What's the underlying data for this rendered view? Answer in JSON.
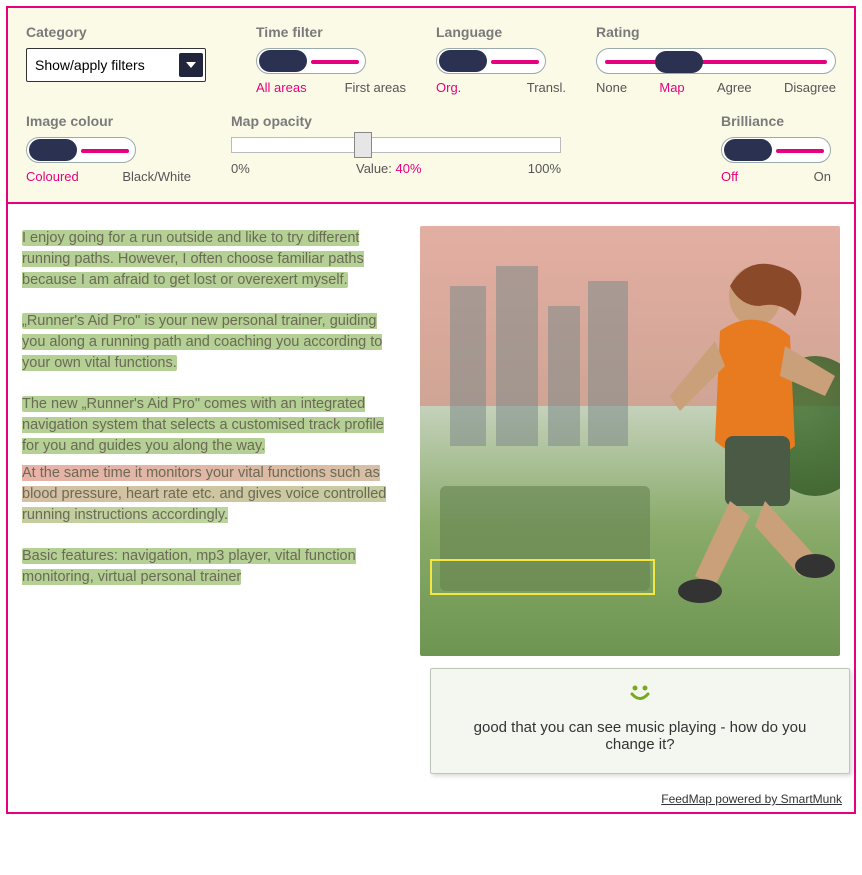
{
  "filters": {
    "category": {
      "label": "Category",
      "dropdown_value": "Show/apply filters"
    },
    "time": {
      "label": "Time filter",
      "left": "All areas",
      "right": "First areas",
      "active": "left"
    },
    "language": {
      "label": "Language",
      "left": "Org.",
      "right": "Transl.",
      "active": "left"
    },
    "rating": {
      "label": "Rating",
      "options": [
        "None",
        "Map",
        "Agree",
        "Disagree"
      ],
      "active_index": 1
    },
    "colour": {
      "label": "Image colour",
      "left": "Coloured",
      "right": "Black/White",
      "active": "left"
    },
    "opacity": {
      "label": "Map opacity",
      "min": "0%",
      "max": "100%",
      "value_prefix": "Value: ",
      "value": "40%",
      "position_pct": 40
    },
    "brilliance": {
      "label": "Brilliance",
      "left": "Off",
      "right": "On",
      "active": "left"
    }
  },
  "paragraphs": {
    "p1": "I enjoy going for a run outside and like to try different running paths. However, I often choose familiar paths because I am afraid to get lost or overexert myself.",
    "p2": "„Runner's Aid Pro\" is your new personal trainer, guiding you along a running path and coaching you according to your own vital functions.",
    "p3": "The new „Runner's Aid Pro\" comes with an integrated navigation system that selects a customised track profile for you and guides you along the way.",
    "p4": "At the same time it monitors your vital functions such as blood pressure, heart rate etc. and gives voice controlled running instructions accordingly.",
    "p5": "Basic features: navigation, mp3 player, vital function monitoring, virtual personal trainer"
  },
  "comment": {
    "icon": ":)",
    "text": "good that you can see music playing - how do you change it?"
  },
  "footer": {
    "text": "FeedMap powered by SmartMunk"
  },
  "colors": {
    "accent": "#e6007e",
    "knob": "#2b3150",
    "panel": "#fbfae7",
    "hl_green": "rgba(120,170,60,0.55)",
    "hl_red": "rgba(210,100,80,0.55)"
  }
}
